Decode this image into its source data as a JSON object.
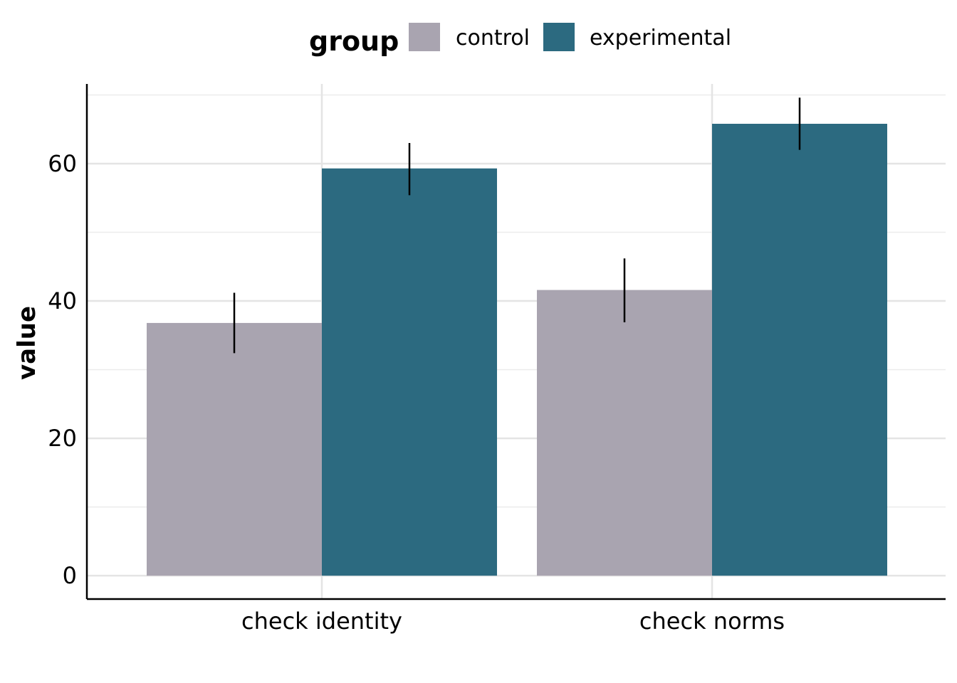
{
  "chart_data": {
    "type": "bar",
    "title": "",
    "xlabel": "",
    "ylabel": "value",
    "ylim": [
      -3.4,
      71.6
    ],
    "yticks": [
      0,
      20,
      40,
      60
    ],
    "categories": [
      "check identity",
      "check norms"
    ],
    "legend": {
      "title": "group",
      "position": "top"
    },
    "grid": true,
    "series": [
      {
        "name": "control",
        "color": "#a9a4b0",
        "values": [
          36.8,
          41.6
        ],
        "error_low": [
          32.4,
          36.9
        ],
        "error_high": [
          41.2,
          46.2
        ]
      },
      {
        "name": "experimental",
        "color": "#2c6a80",
        "values": [
          59.3,
          65.8
        ],
        "error_low": [
          55.4,
          62.0
        ],
        "error_high": [
          63.0,
          69.6
        ]
      }
    ]
  }
}
